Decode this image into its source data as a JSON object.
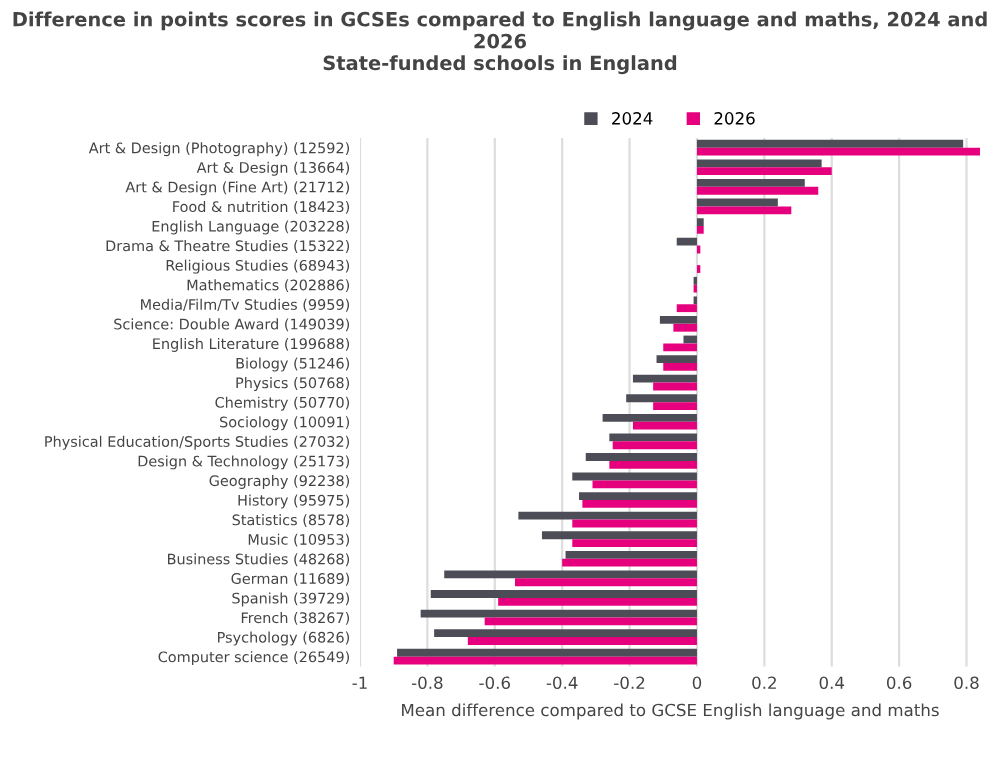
{
  "chart_data": {
    "type": "bar",
    "orientation": "horizontal",
    "title": "Difference in points scores in GCSEs compared to English language and maths, 2024 and\n2026\nState-funded schools in England",
    "xlabel": "Mean difference compared to GCSE English language and maths",
    "categories": [
      "Art & Design (Photography) (12592)",
      "Art & Design (13664)",
      "Art & Design (Fine Art) (21712)",
      "Food & nutrition (18423)",
      "English Language (203228)",
      "Drama & Theatre Studies (15322)",
      "Religious Studies (68943)",
      "Mathematics (202886)",
      "Media/Film/Tv Studies (9959)",
      "Science: Double Award (149039)",
      "English Literature (199688)",
      "Biology (51246)",
      "Physics (50768)",
      "Chemistry (50770)",
      "Sociology (10091)",
      "Physical Education/Sports Studies (27032)",
      "Design & Technology (25173)",
      "Geography (92238)",
      "History (95975)",
      "Statistics (8578)",
      "Music (10953)",
      "Business Studies (48268)",
      "German (11689)",
      "Spanish (39729)",
      "French (38267)",
      "Psychology (6826)",
      "Computer science (26549)"
    ],
    "series": [
      {
        "name": "2024",
        "color": "#4d4d57",
        "values": [
          0.79,
          0.37,
          0.32,
          0.24,
          0.02,
          -0.06,
          0.0,
          -0.01,
          -0.01,
          -0.11,
          -0.04,
          -0.12,
          -0.19,
          -0.21,
          -0.28,
          -0.26,
          -0.33,
          -0.37,
          -0.35,
          -0.53,
          -0.46,
          -0.39,
          -0.75,
          -0.79,
          -0.82,
          -0.78,
          -0.89
        ]
      },
      {
        "name": "2026",
        "color": "#e6007e",
        "values": [
          0.84,
          0.4,
          0.36,
          0.28,
          0.02,
          0.01,
          0.01,
          -0.01,
          -0.06,
          -0.07,
          -0.1,
          -0.1,
          -0.13,
          -0.13,
          -0.19,
          -0.25,
          -0.26,
          -0.31,
          -0.34,
          -0.37,
          -0.37,
          -0.4,
          -0.54,
          -0.59,
          -0.63,
          -0.68,
          -0.9
        ]
      }
    ],
    "xlim": [
      -1,
      0.84
    ],
    "xticks": [
      -1,
      -0.8,
      -0.6,
      -0.4,
      -0.2,
      0,
      0.2,
      0.4,
      0.6,
      0.8
    ],
    "grid": "x",
    "legend": "top"
  }
}
